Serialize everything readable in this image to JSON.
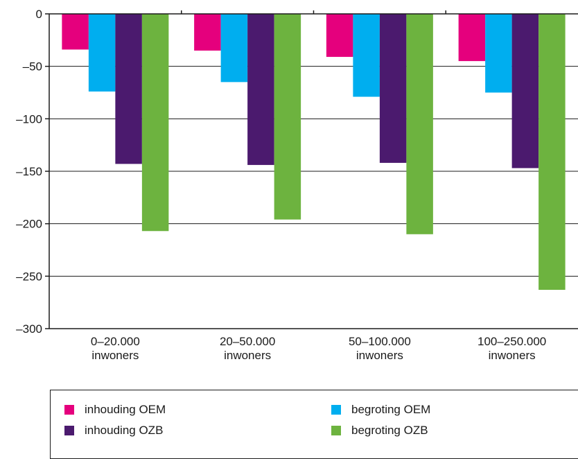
{
  "chart_data": {
    "type": "bar",
    "categories": [
      [
        "0–20.000",
        "inwoners"
      ],
      [
        "20–50.000",
        "inwoners"
      ],
      [
        "50–100.000",
        "inwoners"
      ],
      [
        "100–250.000",
        "inwoners"
      ]
    ],
    "series": [
      {
        "name": "inhouding OEM",
        "color": "#e5007d",
        "values": [
          -34,
          -35,
          -41,
          -45
        ]
      },
      {
        "name": "begroting OEM",
        "color": "#00aeef",
        "values": [
          -74,
          -65,
          -79,
          -75
        ]
      },
      {
        "name": "inhouding OZB",
        "color": "#4b1a6e",
        "values": [
          -143,
          -144,
          -142,
          -147
        ]
      },
      {
        "name": "begroting OZB",
        "color": "#6db33f",
        "values": [
          -207,
          -196,
          -210,
          -263
        ]
      }
    ],
    "ylim": [
      -300,
      0
    ],
    "yticks": [
      0,
      -50,
      -100,
      -150,
      -200,
      -250,
      -300
    ],
    "ytick_labels": [
      "0",
      "–50",
      "–100",
      "–150",
      "–200",
      "–250",
      "–300"
    ],
    "grid": true,
    "legend_position": "bottom"
  }
}
